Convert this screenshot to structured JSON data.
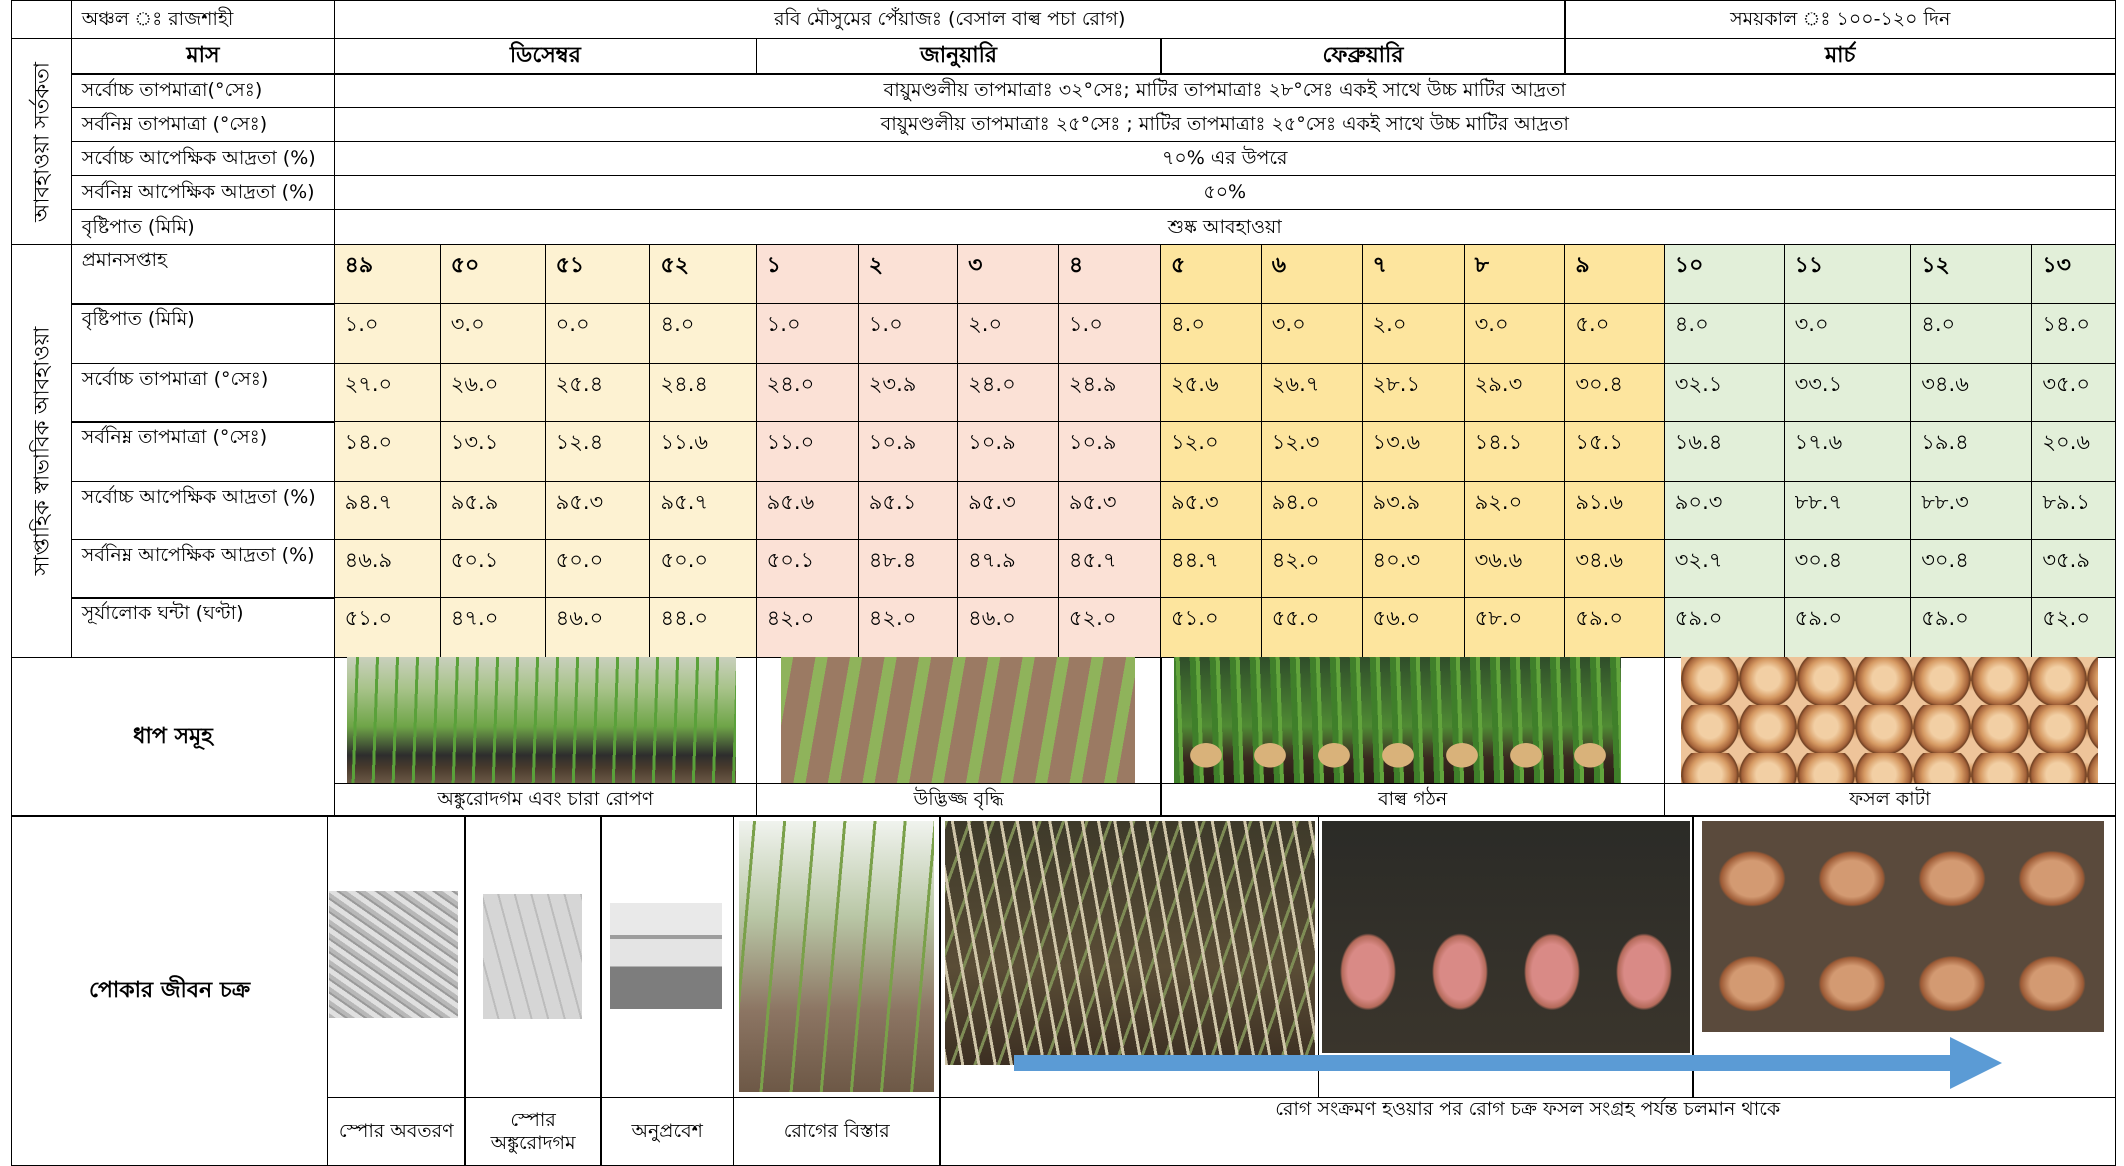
{
  "header": {
    "region": "অঞ্চল ঃ রাজশাহী",
    "title": "রবি মৌসুমের পেঁয়াজঃ (বেসাল বাল্ব পচা রোগ)",
    "duration": "সময়কাল ঃ ১০০-১২০ দিন"
  },
  "weather_alert": {
    "label": "আবহাওয়া সর্তকতা",
    "month_header": "মাস",
    "months": [
      "ডিসেম্বর",
      "জানুয়ারি",
      "ফেব্রুয়ারি",
      "মার্চ"
    ],
    "rows": [
      {
        "label": "সর্বোচ্চ তাপমাত্রা(°সেঃ)",
        "value": "বায়ুমণ্ডলীয় তাপমাত্রাঃ ৩২°সেঃ; মাটির তাপমাত্রাঃ ২৮°সেঃ একই সাথে উচ্চ মাটির আদ্রতা"
      },
      {
        "label": "সর্বনিম্ন তাপমাত্রা (°সেঃ)",
        "value": "বায়ুমণ্ডলীয় তাপমাত্রাঃ ২৫°সেঃ ; মাটির তাপমাত্রাঃ ২৫°সেঃ  একই সাথে উচ্চ মাটির আদ্রতা"
      },
      {
        "label": "সর্বোচ্চ আপেক্ষিক আদ্রতা (%)",
        "value": "৭০% এর উপরে"
      },
      {
        "label": "সর্বনিম্ন আপেক্ষিক আদ্রতা (%)",
        "value": "৫০%"
      },
      {
        "label": "বৃষ্টিপাত (মিমি)",
        "value": "শুষ্ক আবহাওয়া"
      }
    ]
  },
  "weekly_weather": {
    "label": "সাপ্তাহিক স্বাভাবিক আবহাওয়া",
    "week_label": "প্রমানসপ্তাহ",
    "weeks": [
      "৪৯",
      "৫০",
      "৫১",
      "৫২",
      "১",
      "২",
      "৩",
      "৪",
      "৫",
      "৬",
      "৭",
      "৮",
      "৯",
      "১০",
      "১১",
      "১২",
      "১৩"
    ],
    "rows": [
      {
        "label": "বৃষ্টিপাত (মিমি)",
        "values": [
          "১.০",
          "৩.০",
          "০.০",
          "৪.০",
          "১.০",
          "১.০",
          "২.০",
          "১.০",
          "৪.০",
          "৩.০",
          "২.০",
          "৩.০",
          "৫.০",
          "৪.০",
          "৩.০",
          "৪.০",
          "১৪.০"
        ]
      },
      {
        "label": "সর্বোচ্চ তাপমাত্রা (°সেঃ)",
        "values": [
          "২৭.০",
          "২৬.০",
          "২৫.৪",
          "২৪.৪",
          "২৪.০",
          "২৩.৯",
          "২৪.০",
          "২৪.৯",
          "২৫.৬",
          "২৬.৭",
          "২৮.১",
          "২৯.৩",
          "৩০.৪",
          "৩২.১",
          "৩৩.১",
          "৩৪.৬",
          "৩৫.০"
        ]
      },
      {
        "label": "সর্বনিম্ন তাপমাত্রা (°সেঃ)",
        "values": [
          "১৪.০",
          "১৩.১",
          "১২.৪",
          "১১.৬",
          "১১.০",
          "১০.৯",
          "১০.৯",
          "১০.৯",
          "১২.০",
          "১২.৩",
          "১৩.৬",
          "১৪.১",
          "১৫.১",
          "১৬.৪",
          "১৭.৬",
          "১৯.৪",
          "২০.৬"
        ]
      },
      {
        "label": "সর্বোচ্চ আপেক্ষিক আদ্রতা (%)",
        "values": [
          "৯৪.৭",
          "৯৫.৯",
          "৯৫.৩",
          "৯৫.৭",
          "৯৫.৬",
          "৯৫.১",
          "৯৫.৩",
          "৯৫.৩",
          "৯৫.৩",
          "৯৪.০",
          "৯৩.৯",
          "৯২.০",
          "৯১.৬",
          "৯০.৩",
          "৮৮.৭",
          "৮৮.৩",
          "৮৯.১"
        ]
      },
      {
        "label": "সর্বনিম্ন আপেক্ষিক আদ্রতা (%)",
        "values": [
          "৪৬.৯",
          "৫০.১",
          "৫০.০",
          "৫০.০",
          "৫০.১",
          "৪৮.৪",
          "৪৭.৯",
          "৪৫.৭",
          "৪৪.৭",
          "৪২.০",
          "৪০.৩",
          "৩৬.৬",
          "৩৪.৬",
          "৩২.৭",
          "৩০.৪",
          "৩০.৪",
          "৩৫.৯"
        ]
      },
      {
        "label": "সূর্যালোক ঘন্টা (ঘণ্টা)",
        "values": [
          "৫১.০",
          "৪৭.০",
          "৪৬.০",
          "৪৪.০",
          "৪২.০",
          "৪২.০",
          "৪৬.০",
          "৫২.০",
          "৫১.০",
          "৫৫.০",
          "৫৬.০",
          "৫৮.০",
          "৫৯.০",
          "৫৯.০",
          "৫৯.০",
          "৫৯.০",
          "৫২.০"
        ]
      }
    ]
  },
  "stages": {
    "label": "ধাপ সমূহ",
    "items": [
      "অঙ্কুরোদগম এবং চারা রোপণ",
      "উদ্ভিজ্জ বৃদ্ধি",
      "বাল্ব গঠন",
      "ফসল কাটা"
    ]
  },
  "disease_cycle": {
    "label": "পোকার জীবন চক্র",
    "items": [
      "স্পোর অবতরণ",
      "স্পোর অঙ্কুরোদগম",
      "অনুপ্রবেশ",
      "রোগের বিস্তার"
    ],
    "summary": "রোগ সংক্রমণ হওয়ার পর রোগ চক্র ফসল সংগ্রহ পর্যন্ত চলমান থাকে"
  }
}
